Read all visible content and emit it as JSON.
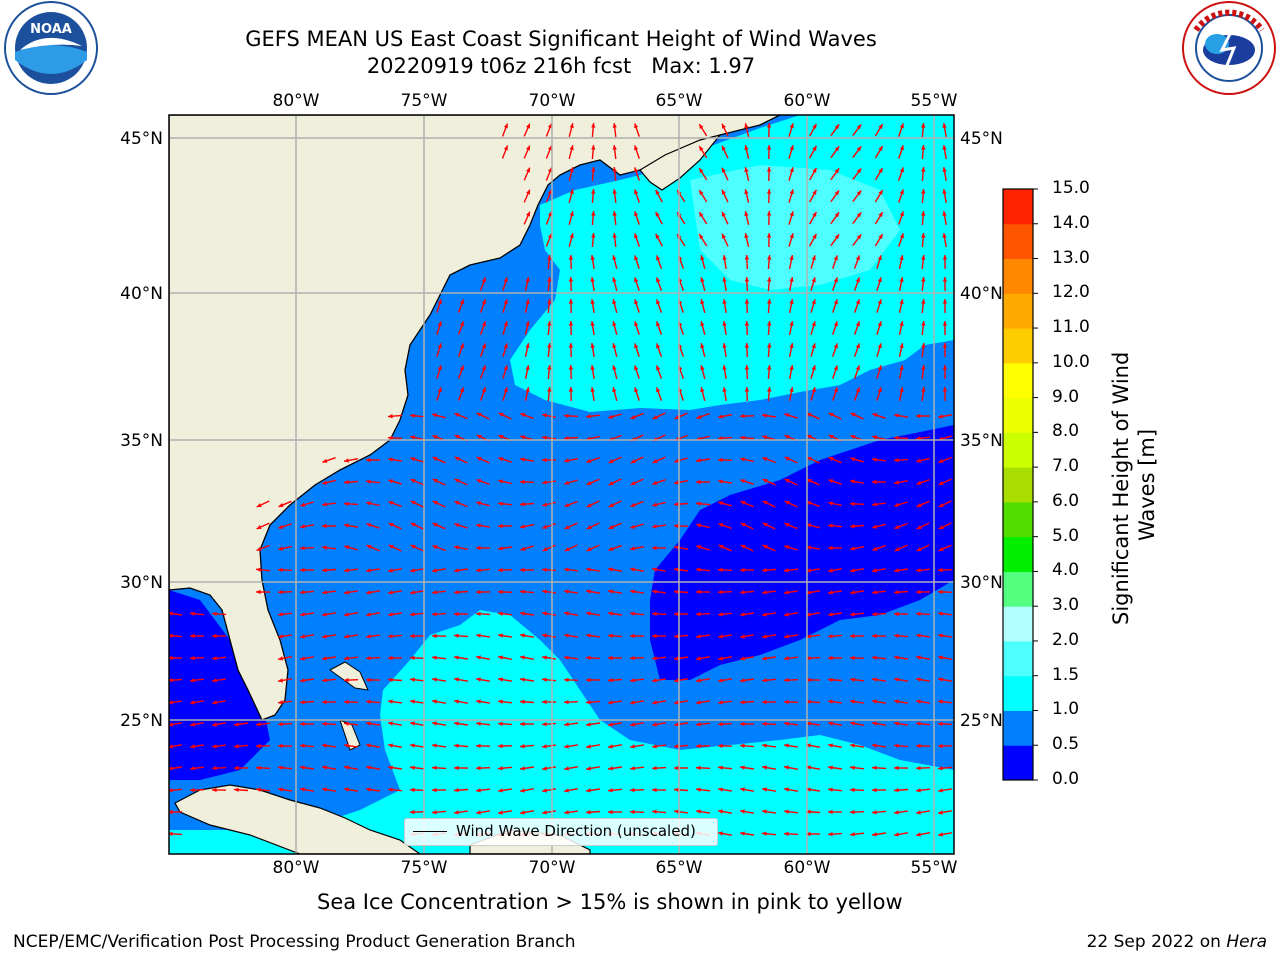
{
  "title": {
    "line1": "GEFS MEAN US East Coast Significant Height of Wind Waves",
    "line2": "20220919 t06z 216h fcst   Max: 1.97"
  },
  "logos": {
    "left": "noaa-logo",
    "right": "national-weather-service-logo"
  },
  "axes": {
    "lon_labels": [
      "80°W",
      "75°W",
      "70°W",
      "65°W",
      "60°W",
      "55°W"
    ],
    "lat_labels": [
      "45°N",
      "40°N",
      "35°N",
      "30°N",
      "25°N"
    ]
  },
  "legend": {
    "label": "Wind Wave Direction (unscaled)"
  },
  "colorbar": {
    "title": "Significant Height of Wind Waves [m]",
    "ticks": [
      "0.0",
      "0.5",
      "1.0",
      "1.5",
      "2.0",
      "3.0",
      "4.0",
      "5.0",
      "6.0",
      "7.0",
      "8.0",
      "9.0",
      "10.0",
      "11.0",
      "12.0",
      "13.0",
      "14.0",
      "15.0"
    ],
    "colors": [
      "#0000ff",
      "#0080ff",
      "#00ffff",
      "#4dffff",
      "#b2ffff",
      "#55ff80",
      "#00ee00",
      "#55dd00",
      "#aadd00",
      "#ccff00",
      "#eeff00",
      "#ffff00",
      "#ffcc00",
      "#ffaa00",
      "#ff8800",
      "#ff5500",
      "#ff2200"
    ]
  },
  "colors": {
    "land": "#efefdc",
    "sea_0_05": "#0000ff",
    "sea_05_10": "#0080ff",
    "sea_10_15": "#00ffff",
    "sea_15_20": "#4dffff",
    "arrow": "#ff0000",
    "grid": "#b0b0b0"
  },
  "subtitle": "Sea Ice Concentration > 15% is shown in pink to yellow",
  "footer": {
    "left": "NCEP/EMC/Verification Post Processing Product Generation Branch",
    "right_date": "22 Sep 2022 on",
    "right_host": "Hera"
  }
}
